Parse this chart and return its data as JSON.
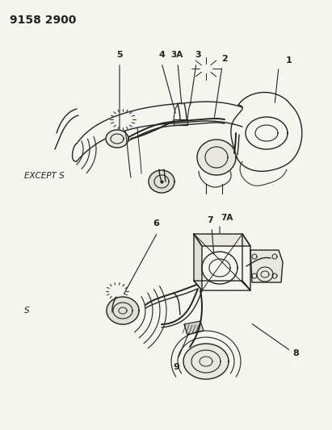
{
  "title": "9158 2900",
  "bg": "#f5f5f0",
  "fg": "#222222",
  "label_top": "EXCEPT S",
  "label_bottom": "S",
  "figsize": [
    4.11,
    5.33
  ],
  "dpi": 100
}
